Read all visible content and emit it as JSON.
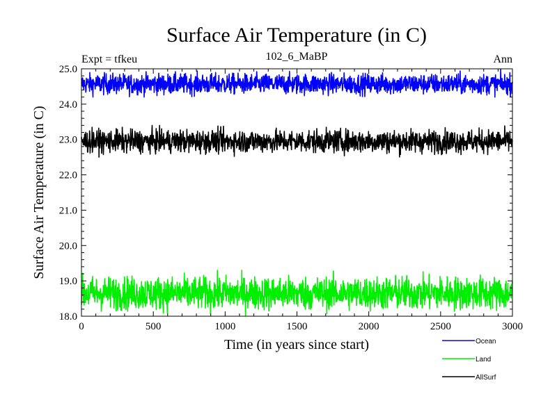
{
  "header": {
    "title": "Surface Air Temperature (in C)",
    "experiment": "Expt = tfkeu",
    "subtitle": "102_6_MaBP",
    "season": "Ann"
  },
  "chart_data": {
    "type": "line",
    "title": "Surface Air Temperature (in C)",
    "xlabel": "Time (in years since start)",
    "ylabel": "Surface Air Temperature (in C)",
    "xlim": [
      0,
      3000
    ],
    "ylim": [
      18.0,
      25.0
    ],
    "x_ticks": [
      0,
      500,
      1000,
      1500,
      2000,
      2500,
      3000
    ],
    "y_ticks": [
      "18.0",
      "19.0",
      "20.0",
      "21.0",
      "22.0",
      "23.0",
      "24.0",
      "25.0"
    ],
    "grid": false,
    "legend_placement": "bottom-right, below plot",
    "series": [
      {
        "name": "Ocean",
        "color": "#0000ff",
        "mean": 24.57,
        "min": 24.2,
        "max": 25.0
      },
      {
        "name": "Land",
        "color": "#00ee00",
        "mean": 18.65,
        "min": 18.0,
        "max": 19.3
      },
      {
        "name": "AllSurf",
        "color": "#000000",
        "mean": 22.95,
        "min": 22.5,
        "max": 23.4
      }
    ]
  }
}
